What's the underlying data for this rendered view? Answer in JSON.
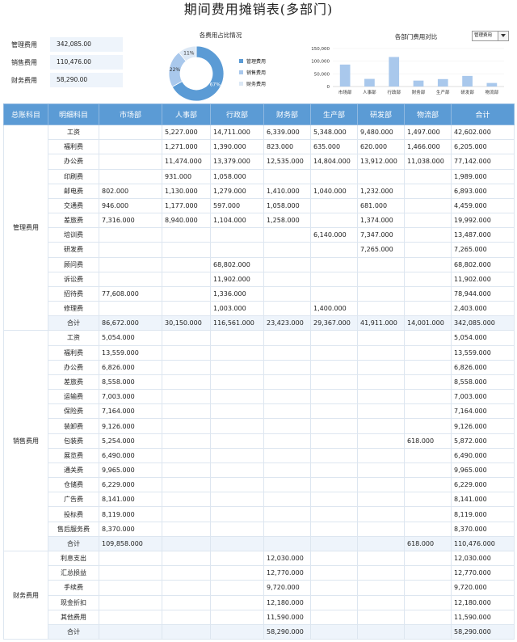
{
  "title": "期间费用摊销表(多部门)",
  "summary": [
    {
      "label": "管理费用",
      "value": "342,085.00"
    },
    {
      "label": "销售费用",
      "value": "110,476.00"
    },
    {
      "label": "财务费用",
      "value": "58,290.00"
    }
  ],
  "pie": {
    "title": "各费用占比情况",
    "slices": [
      {
        "label": "管理费用",
        "pct": 67,
        "pct_label": "67%",
        "color": "#5b9bd5"
      },
      {
        "label": "销售费用",
        "pct": 22,
        "pct_label": "22%",
        "color": "#a9c8ec"
      },
      {
        "label": "财务费用",
        "pct": 11,
        "pct_label": "11%",
        "color": "#dce8f5"
      }
    ]
  },
  "bar": {
    "title": "各部门费用对比",
    "select_value": "管理费用",
    "y_ticks": [
      "150,000",
      "100,000",
      "50,000",
      "0"
    ],
    "ylim": [
      0,
      150000
    ],
    "color": "#a9c8ec"
  },
  "chart_data": {
    "type": "bar",
    "categories": [
      "市场部",
      "人事部",
      "行政部",
      "财务部",
      "生产部",
      "研发部",
      "物流部"
    ],
    "values": [
      86672,
      30150,
      116561,
      23423,
      29367,
      41911,
      14001
    ],
    "title": "各部门费用对比",
    "xlabel": "",
    "ylabel": "",
    "ylim": [
      0,
      150000
    ]
  },
  "table": {
    "headers": [
      "总账科目",
      "明细科目",
      "市场部",
      "人事部",
      "行政部",
      "财务部",
      "生产部",
      "研发部",
      "物流部",
      "合计"
    ],
    "groups": [
      {
        "category": "管理费用",
        "rows": [
          {
            "item": "工资",
            "values": [
              "",
              "5,227.000",
              "14,711.000",
              "6,339.000",
              "5,348.000",
              "9,480.000",
              "1,497.000",
              "42,602.000"
            ]
          },
          {
            "item": "福利费",
            "values": [
              "",
              "1,271.000",
              "1,390.000",
              "823.000",
              "635.000",
              "620.000",
              "1,466.000",
              "6,205.000"
            ]
          },
          {
            "item": "办公费",
            "values": [
              "",
              "11,474.000",
              "13,379.000",
              "12,535.000",
              "14,804.000",
              "13,912.000",
              "11,038.000",
              "77,142.000"
            ]
          },
          {
            "item": "印刷费",
            "values": [
              "",
              "931.000",
              "1,058.000",
              "",
              "",
              "",
              "",
              "1,989.000"
            ]
          },
          {
            "item": "邮电费",
            "values": [
              "802.000",
              "1,130.000",
              "1,279.000",
              "1,410.000",
              "1,040.000",
              "1,232.000",
              "",
              "6,893.000"
            ]
          },
          {
            "item": "交通费",
            "values": [
              "946.000",
              "1,177.000",
              "597.000",
              "1,058.000",
              "",
              "681.000",
              "",
              "4,459.000"
            ]
          },
          {
            "item": "差旅费",
            "values": [
              "7,316.000",
              "8,940.000",
              "1,104.000",
              "1,258.000",
              "",
              "1,374.000",
              "",
              "19,992.000"
            ]
          },
          {
            "item": "培训费",
            "values": [
              "",
              "",
              "",
              "",
              "6,140.000",
              "7,347.000",
              "",
              "13,487.000"
            ]
          },
          {
            "item": "研发费",
            "values": [
              "",
              "",
              "",
              "",
              "",
              "7,265.000",
              "",
              "7,265.000"
            ]
          },
          {
            "item": "顾问费",
            "values": [
              "",
              "",
              "68,802.000",
              "",
              "",
              "",
              "",
              "68,802.000"
            ]
          },
          {
            "item": "诉讼费",
            "values": [
              "",
              "",
              "11,902.000",
              "",
              "",
              "",
              "",
              "11,902.000"
            ]
          },
          {
            "item": "招待费",
            "values": [
              "77,608.000",
              "",
              "1,336.000",
              "",
              "",
              "",
              "",
              "78,944.000"
            ]
          },
          {
            "item": "修理费",
            "values": [
              "",
              "",
              "1,003.000",
              "",
              "1,400.000",
              "",
              "",
              "2,403.000"
            ]
          },
          {
            "item": "合计",
            "total": true,
            "values": [
              "86,672.000",
              "30,150.000",
              "116,561.000",
              "23,423.000",
              "29,367.000",
              "41,911.000",
              "14,001.000",
              "342,085.000"
            ]
          }
        ]
      },
      {
        "category": "销售费用",
        "rows": [
          {
            "item": "工资",
            "values": [
              "5,054.000",
              "",
              "",
              "",
              "",
              "",
              "",
              "5,054.000"
            ]
          },
          {
            "item": "福利费",
            "values": [
              "13,559.000",
              "",
              "",
              "",
              "",
              "",
              "",
              "13,559.000"
            ]
          },
          {
            "item": "办公费",
            "values": [
              "6,826.000",
              "",
              "",
              "",
              "",
              "",
              "",
              "6,826.000"
            ]
          },
          {
            "item": "差旅费",
            "values": [
              "8,558.000",
              "",
              "",
              "",
              "",
              "",
              "",
              "8,558.000"
            ]
          },
          {
            "item": "运输费",
            "values": [
              "7,003.000",
              "",
              "",
              "",
              "",
              "",
              "",
              "7,003.000"
            ]
          },
          {
            "item": "保险费",
            "values": [
              "7,164.000",
              "",
              "",
              "",
              "",
              "",
              "",
              "7,164.000"
            ]
          },
          {
            "item": "装卸费",
            "values": [
              "9,126.000",
              "",
              "",
              "",
              "",
              "",
              "",
              "9,126.000"
            ]
          },
          {
            "item": "包装费",
            "values": [
              "5,254.000",
              "",
              "",
              "",
              "",
              "",
              "618.000",
              "5,872.000"
            ]
          },
          {
            "item": "展览费",
            "values": [
              "6,490.000",
              "",
              "",
              "",
              "",
              "",
              "",
              "6,490.000"
            ]
          },
          {
            "item": "通关费",
            "values": [
              "9,965.000",
              "",
              "",
              "",
              "",
              "",
              "",
              "9,965.000"
            ]
          },
          {
            "item": "仓储费",
            "values": [
              "6,229.000",
              "",
              "",
              "",
              "",
              "",
              "",
              "6,229.000"
            ]
          },
          {
            "item": "广告费",
            "values": [
              "8,141.000",
              "",
              "",
              "",
              "",
              "",
              "",
              "8,141.000"
            ]
          },
          {
            "item": "投标费",
            "values": [
              "8,119.000",
              "",
              "",
              "",
              "",
              "",
              "",
              "8,119.000"
            ]
          },
          {
            "item": "售后服务费",
            "values": [
              "8,370.000",
              "",
              "",
              "",
              "",
              "",
              "",
              "8,370.000"
            ]
          },
          {
            "item": "合计",
            "total": true,
            "values": [
              "109,858.000",
              "",
              "",
              "",
              "",
              "",
              "618.000",
              "110,476.000"
            ]
          }
        ]
      },
      {
        "category": "财务费用",
        "rows": [
          {
            "item": "利息支出",
            "values": [
              "",
              "",
              "",
              "12,030.000",
              "",
              "",
              "",
              "12,030.000"
            ]
          },
          {
            "item": "汇总损益",
            "values": [
              "",
              "",
              "",
              "12,770.000",
              "",
              "",
              "",
              "12,770.000"
            ]
          },
          {
            "item": "手续费",
            "values": [
              "",
              "",
              "",
              "9,720.000",
              "",
              "",
              "",
              "9,720.000"
            ]
          },
          {
            "item": "现金折扣",
            "values": [
              "",
              "",
              "",
              "12,180.000",
              "",
              "",
              "",
              "12,180.000"
            ]
          },
          {
            "item": "其他费用",
            "values": [
              "",
              "",
              "",
              "11,590.000",
              "",
              "",
              "",
              "11,590.000"
            ]
          },
          {
            "item": "合计",
            "total": true,
            "values": [
              "",
              "",
              "",
              "58,290.000",
              "",
              "",
              "",
              "58,290.000"
            ]
          }
        ]
      }
    ]
  }
}
